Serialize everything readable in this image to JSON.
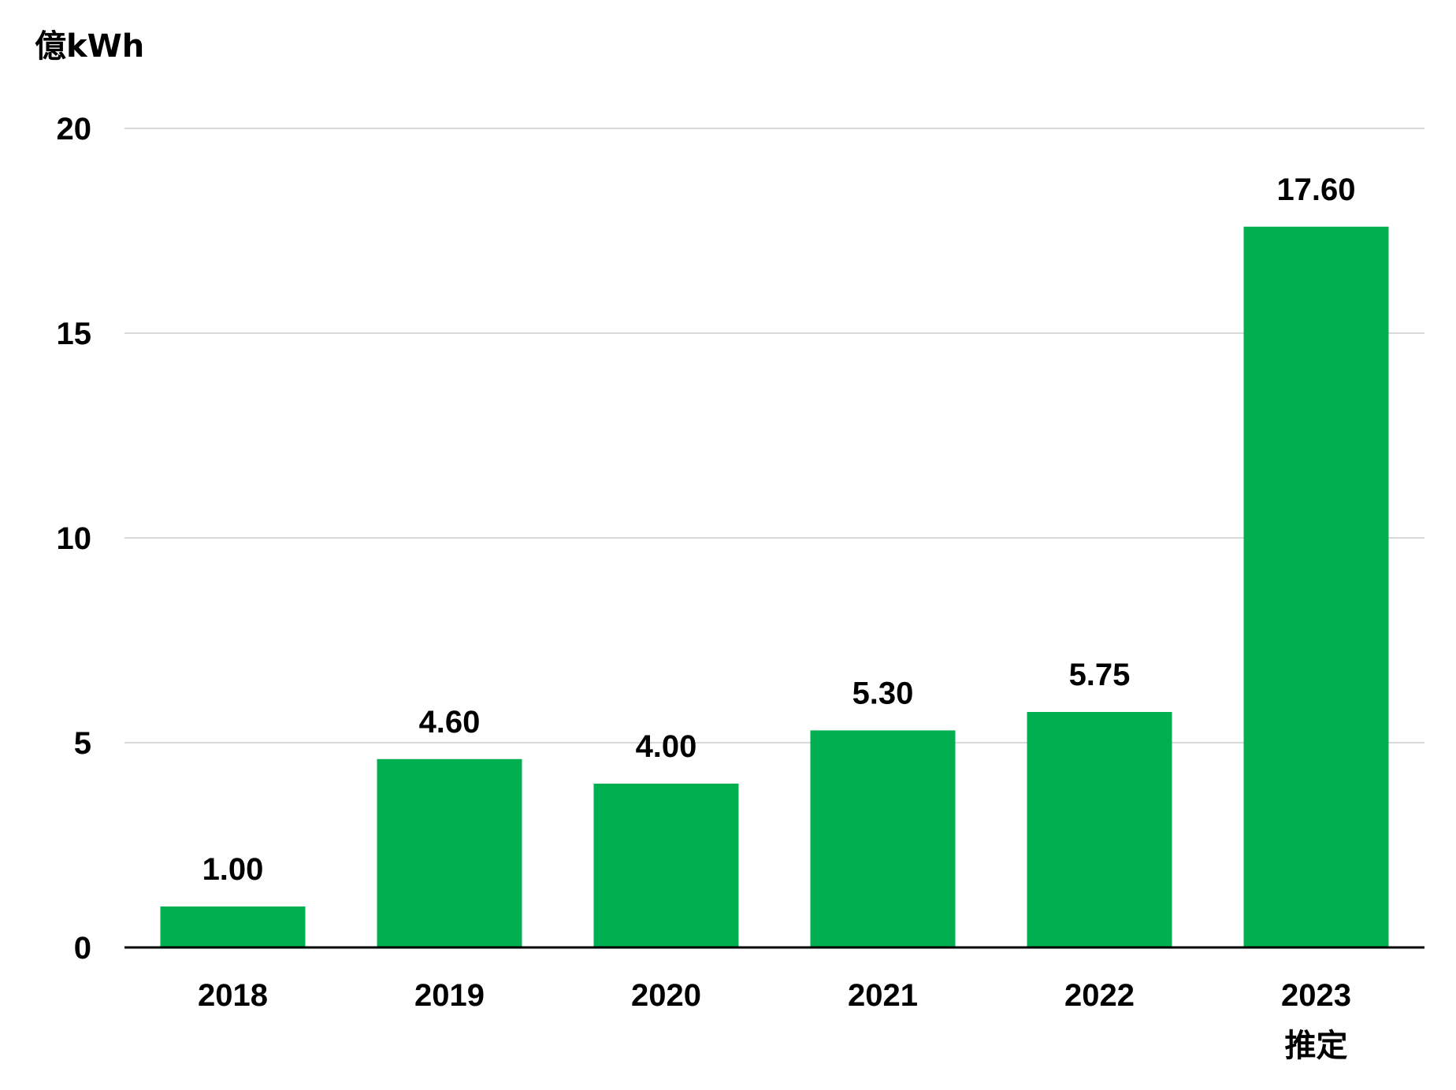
{
  "chart_data": {
    "type": "bar",
    "title": "",
    "unit_label": "億kWh",
    "xlabel": "",
    "ylabel": "",
    "categories": [
      "2018",
      "2019",
      "2020",
      "2021",
      "2022",
      "2023"
    ],
    "category_sublabels": [
      "",
      "",
      "",
      "",
      "",
      "推定"
    ],
    "values": [
      1.0,
      4.6,
      4.0,
      5.3,
      5.75,
      17.6
    ],
    "value_labels": [
      "1.00",
      "4.60",
      "4.00",
      "5.30",
      "5.75",
      "17.60"
    ],
    "ylim": [
      0,
      20
    ],
    "yticks": [
      0,
      5,
      10,
      15,
      20
    ],
    "ytick_labels": [
      "0",
      "5",
      "10",
      "15",
      "20"
    ],
    "grid": true,
    "legend": "none",
    "bar_color": "#00b050",
    "gridline_color": "#d9d9d9",
    "axis_color": "#000000"
  }
}
